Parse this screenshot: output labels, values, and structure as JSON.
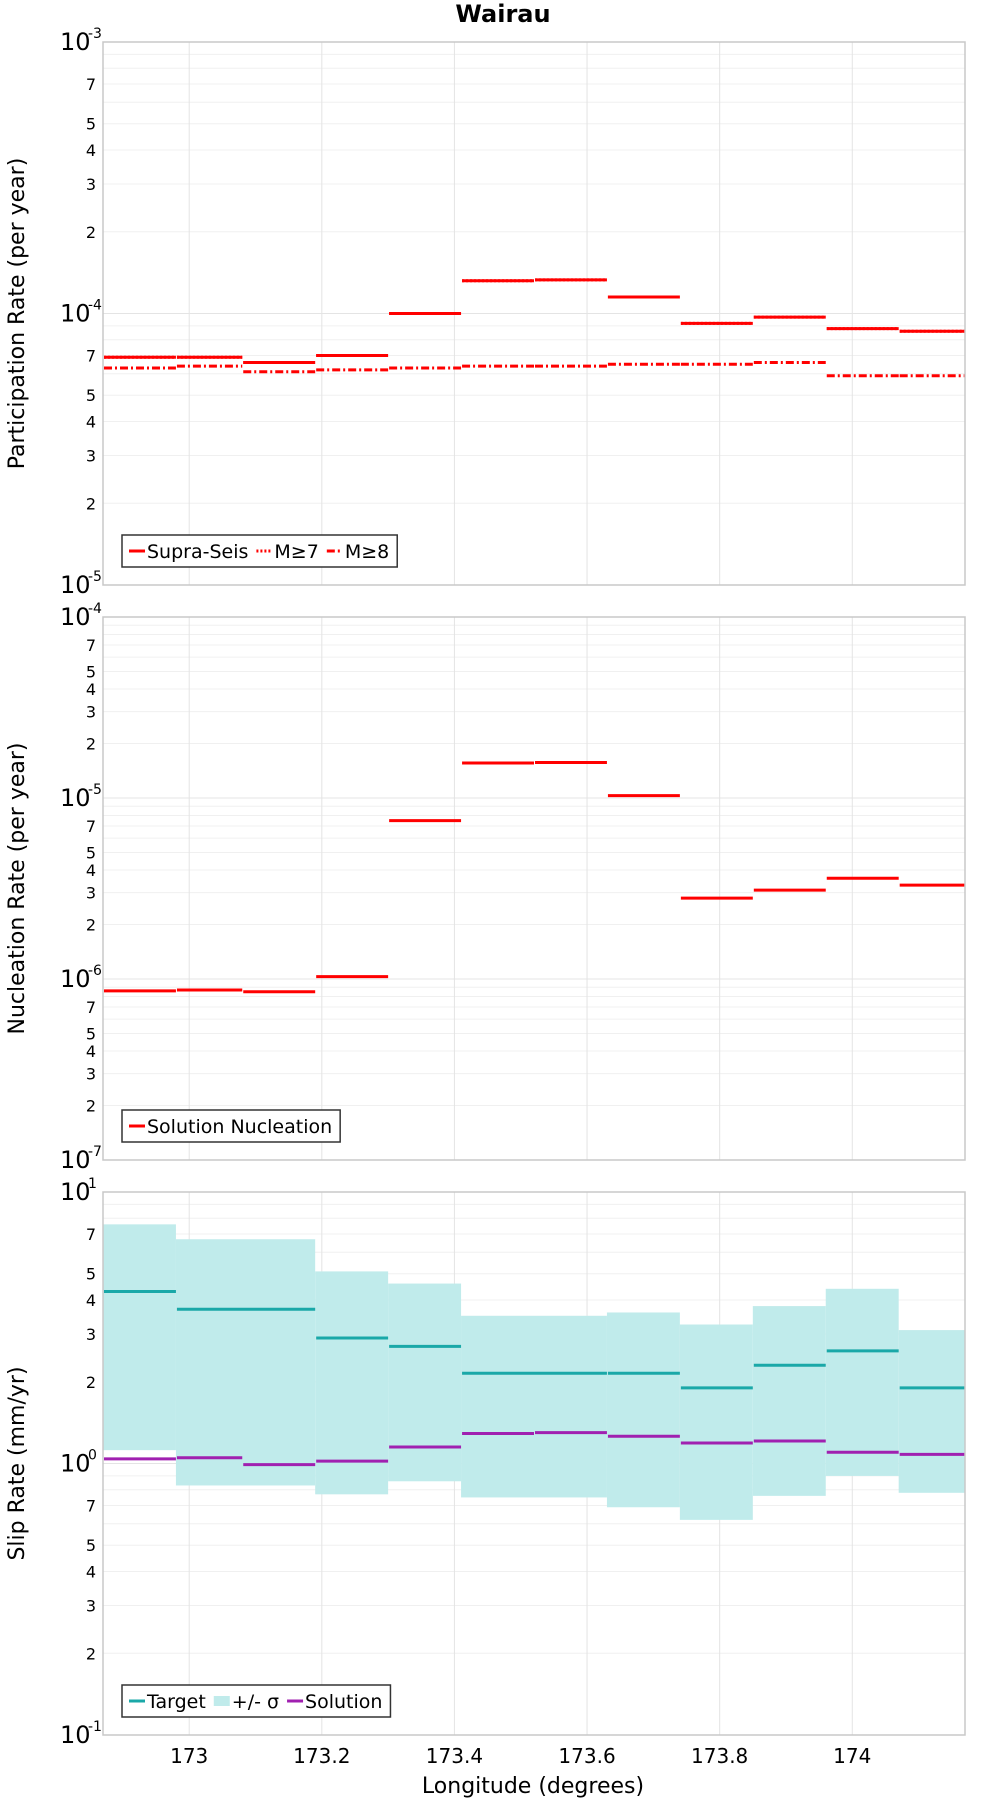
{
  "title": "Wairau",
  "xlabel": "Longitude (degrees)",
  "chart_data": [
    {
      "type": "line",
      "ylabel": "Participation Rate (per year)",
      "yscale": "log",
      "ylim": [
        1e-05,
        0.001
      ],
      "xlim": [
        172.87,
        174.17
      ],
      "x_ticks": [
        173,
        173.2,
        173.4,
        173.6,
        173.8,
        174
      ],
      "x_tick_labels": [
        "173",
        "173.2",
        "173.4",
        "173.6",
        "173.8",
        "174"
      ],
      "legend_position": "bottom-left",
      "grid": true,
      "series": [
        {
          "name": "Supra-Seis",
          "style": "solid",
          "color": "#ff0000",
          "x_start": [
            172.87,
            172.98,
            173.08,
            173.19,
            173.3,
            173.41,
            173.52,
            173.63,
            173.74,
            173.85,
            173.96,
            174.07
          ],
          "x_end": [
            172.98,
            173.08,
            173.19,
            173.3,
            173.41,
            173.52,
            173.63,
            173.74,
            173.85,
            173.96,
            174.07,
            174.17
          ],
          "values": [
            6.9e-05,
            6.9e-05,
            6.6e-05,
            7e-05,
            0.0001,
            0.000132,
            0.000133,
            0.000115,
            9.2e-05,
            9.7e-05,
            8.8e-05,
            8.6e-05
          ]
        },
        {
          "name": "M≥7",
          "style": "dotted",
          "color": "#ff0000",
          "x_start": [
            172.87,
            172.98,
            173.08,
            173.19,
            173.3,
            173.41,
            173.52,
            173.63,
            173.74,
            173.85,
            173.96,
            174.07
          ],
          "x_end": [
            172.98,
            173.08,
            173.19,
            173.3,
            173.41,
            173.52,
            173.63,
            173.74,
            173.85,
            173.96,
            174.07,
            174.17
          ],
          "values": [
            6.9e-05,
            6.9e-05,
            6.6e-05,
            7e-05,
            0.0001,
            0.000132,
            0.000133,
            0.000115,
            9.2e-05,
            9.7e-05,
            8.8e-05,
            8.6e-05
          ]
        },
        {
          "name": "M≥8",
          "style": "dashdot",
          "color": "#ff0000",
          "x_start": [
            172.87,
            172.98,
            173.08,
            173.19,
            173.3,
            173.41,
            173.52,
            173.63,
            173.74,
            173.85,
            173.96,
            174.07
          ],
          "x_end": [
            172.98,
            173.08,
            173.19,
            173.3,
            173.41,
            173.52,
            173.63,
            173.74,
            173.85,
            173.96,
            174.07,
            174.17
          ],
          "values": [
            6.3e-05,
            6.4e-05,
            6.1e-05,
            6.2e-05,
            6.3e-05,
            6.4e-05,
            6.4e-05,
            6.5e-05,
            6.5e-05,
            6.6e-05,
            5.9e-05,
            5.9e-05
          ]
        }
      ]
    },
    {
      "type": "line",
      "ylabel": "Nucleation Rate (per year)",
      "yscale": "log",
      "ylim": [
        1e-07,
        0.0001
      ],
      "xlim": [
        172.87,
        174.17
      ],
      "legend_position": "bottom-left",
      "grid": true,
      "series": [
        {
          "name": "Solution Nucleation",
          "style": "solid",
          "color": "#ff0000",
          "x_start": [
            172.87,
            172.98,
            173.08,
            173.19,
            173.3,
            173.41,
            173.52,
            173.63,
            173.74,
            173.85,
            173.96,
            174.07
          ],
          "x_end": [
            172.98,
            173.08,
            173.19,
            173.3,
            173.41,
            173.52,
            173.63,
            173.74,
            173.85,
            173.96,
            174.07,
            174.17
          ],
          "values": [
            8.6e-07,
            8.7e-07,
            8.5e-07,
            1.03e-06,
            7.5e-06,
            1.56e-05,
            1.57e-05,
            1.03e-05,
            2.8e-06,
            3.1e-06,
            3.6e-06,
            3.3e-06
          ]
        }
      ]
    },
    {
      "type": "line",
      "ylabel": "Slip Rate (mm/yr)",
      "yscale": "log",
      "ylim": [
        0.1,
        10
      ],
      "xlim": [
        172.87,
        174.17
      ],
      "legend_position": "bottom-left",
      "grid": true,
      "band": {
        "name": "+/- σ",
        "color": "#c0ebeb",
        "x_start": [
          172.87,
          172.98,
          173.19,
          173.3,
          173.41,
          173.63,
          173.74,
          173.85,
          173.96,
          174.07
        ],
        "x_end": [
          172.98,
          173.19,
          173.3,
          173.41,
          173.63,
          173.74,
          173.85,
          173.96,
          174.07,
          174.17
        ],
        "upper": [
          7.6,
          6.7,
          5.1,
          4.6,
          3.5,
          3.6,
          3.25,
          3.8,
          4.4,
          3.1
        ],
        "lower": [
          1.12,
          0.83,
          0.77,
          0.86,
          0.75,
          0.69,
          0.62,
          0.76,
          0.9,
          0.78
        ]
      },
      "series": [
        {
          "name": "Target",
          "style": "solid",
          "color": "#1aa8a8",
          "x_start": [
            172.87,
            172.98,
            173.19,
            173.3,
            173.41,
            173.63,
            173.74,
            173.85,
            173.96,
            174.07
          ],
          "x_end": [
            172.98,
            173.19,
            173.3,
            173.41,
            173.63,
            173.74,
            173.85,
            173.96,
            174.07,
            174.17
          ],
          "values": [
            4.3,
            3.7,
            2.9,
            2.7,
            2.15,
            2.15,
            1.9,
            2.3,
            2.6,
            1.9
          ]
        },
        {
          "name": "Solution",
          "style": "solid",
          "color": "#a020b0",
          "x_start": [
            172.87,
            172.98,
            173.08,
            173.19,
            173.3,
            173.41,
            173.52,
            173.63,
            173.74,
            173.85,
            173.96,
            174.07
          ],
          "x_end": [
            172.98,
            173.08,
            173.19,
            173.3,
            173.41,
            173.52,
            173.63,
            173.74,
            173.85,
            173.96,
            174.07,
            174.17
          ],
          "values": [
            1.04,
            1.05,
            0.99,
            1.02,
            1.15,
            1.29,
            1.3,
            1.26,
            1.19,
            1.21,
            1.1,
            1.08
          ]
        }
      ]
    }
  ]
}
